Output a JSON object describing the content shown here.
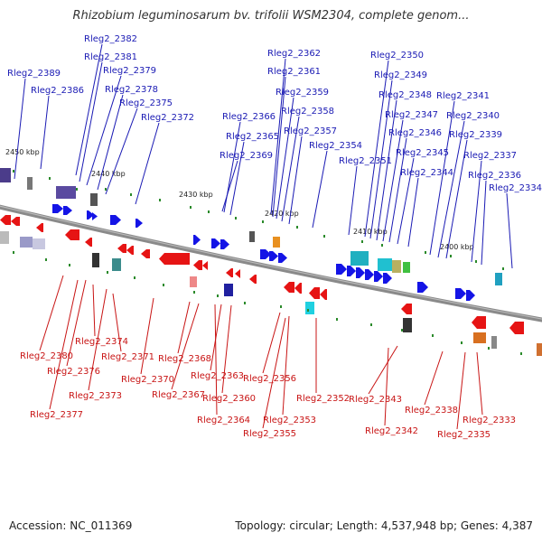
{
  "header": {
    "title": "Rhizobium leguminosarum bv. trifolii WSM2304, complete genom..."
  },
  "footer": {
    "accession": "Accession: NC_011369",
    "summary": "Topology: circular; Length: 4,537,948 bp; Genes: 4,387"
  },
  "colors": {
    "forward": "#1414e6",
    "reverse": "#e61414",
    "backbone": "#8a8a8a",
    "label_top": "#1a1ab4",
    "label_bottom": "#c81414"
  },
  "scale_labels": [
    "2450 kbp",
    "2440 kbp",
    "2430 kbp",
    "2420 kbp",
    "2410 kbp",
    "2400 kbp"
  ],
  "top_labels": [
    "Rleg2_2389",
    "Rleg2_2386",
    "Rleg2_2382",
    "Rleg2_2381",
    "Rleg2_2379",
    "Rleg2_2378",
    "Rleg2_2375",
    "Rleg2_2372",
    "Rleg2_2366",
    "Rleg2_2365",
    "Rleg2_2369",
    "Rleg2_2362",
    "Rleg2_2361",
    "Rleg2_2359",
    "Rleg2_2358",
    "Rleg2_2357",
    "Rleg2_2354",
    "Rleg2_2350",
    "Rleg2_2349",
    "Rleg2_2348",
    "Rleg2_2347",
    "Rleg2_2346",
    "Rleg2_2345",
    "Rleg2_2351",
    "Rleg2_2344",
    "Rleg2_2341",
    "Rleg2_2340",
    "Rleg2_2339",
    "Rleg2_2337",
    "Rleg2_2336",
    "Rleg2_2334"
  ],
  "bottom_labels": [
    "Rleg2_2380",
    "Rleg2_2374",
    "Rleg2_2376",
    "Rleg2_2371",
    "Rleg2_2373",
    "Rleg2_2377",
    "Rleg2_2370",
    "Rleg2_2368",
    "Rleg2_2367",
    "Rleg2_2363",
    "Rleg2_2360",
    "Rleg2_2364",
    "Rleg2_2356",
    "Rleg2_2353",
    "Rleg2_2355",
    "Rleg2_2352",
    "Rleg2_2343",
    "Rleg2_2342",
    "Rleg2_2338",
    "Rleg2_2333",
    "Rleg2_2335"
  ]
}
